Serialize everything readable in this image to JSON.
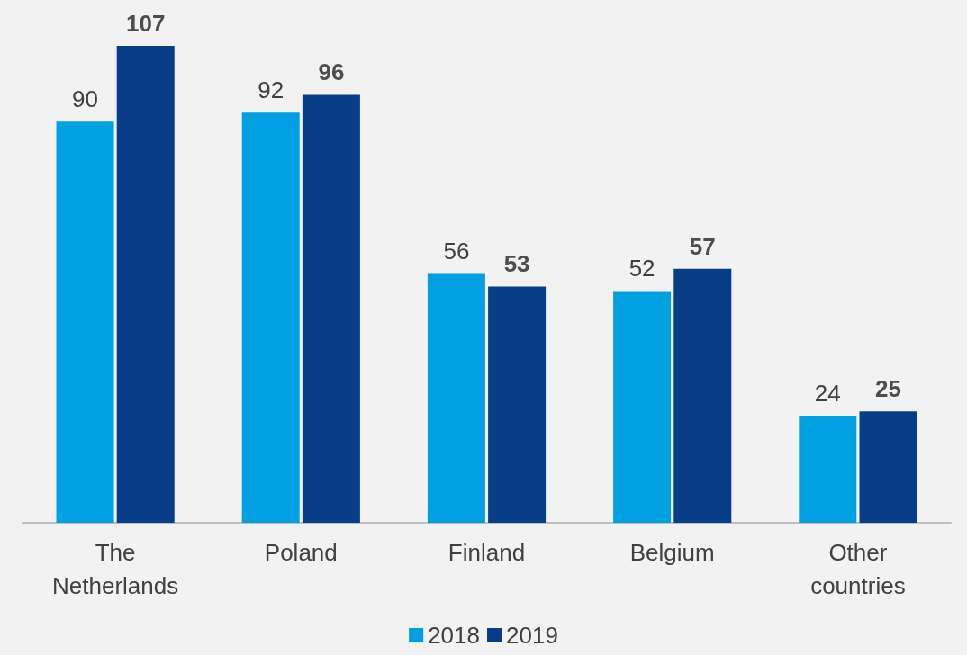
{
  "chart_data": {
    "type": "bar",
    "categories": [
      "The\nNetherlands",
      "Poland",
      "Finland",
      "Belgium",
      "Other\ncountries"
    ],
    "series": [
      {
        "name": "2018",
        "color": "#00a0e3",
        "values": [
          90,
          92,
          56,
          52,
          24
        ]
      },
      {
        "name": "2019",
        "color": "#073e87",
        "values": [
          107,
          96,
          53,
          57,
          25
        ]
      }
    ],
    "data_labels": true,
    "legend": "bottom"
  }
}
